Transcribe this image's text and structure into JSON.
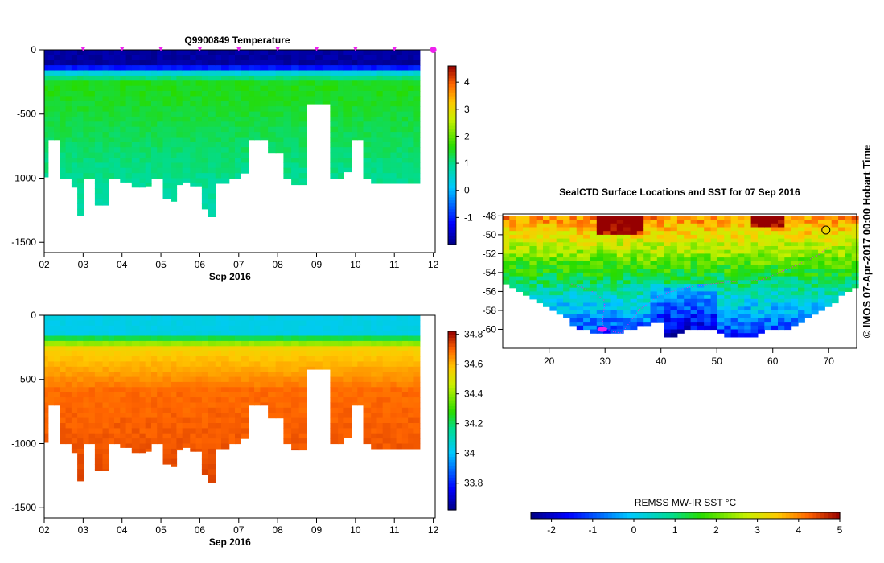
{
  "chart_data": [
    {
      "type": "heatmap",
      "title": "Q9900849  Temperature",
      "xlabel": "Sep 2016",
      "x_tick_labels": [
        "02",
        "03",
        "04",
        "05",
        "06",
        "07",
        "08",
        "09",
        "10",
        "11",
        "12"
      ],
      "x_range_days": [
        2,
        12.05
      ],
      "y_tick_labels": [
        "0",
        "-500",
        "-1000",
        "-1500"
      ],
      "y_ticks": [
        0,
        -500,
        -1000,
        -1500
      ],
      "ylim": [
        -1580,
        0
      ],
      "colorbar": {
        "ticks": [
          -1,
          0,
          1,
          2,
          3,
          4
        ],
        "tick_labels": [
          "-1",
          "0",
          "1",
          "2",
          "3",
          "4"
        ],
        "range": [
          -2,
          4.6
        ]
      },
      "profile_times": [
        2.0,
        2.1,
        2.25,
        2.4,
        2.55,
        2.7,
        2.85,
        3.0,
        3.15,
        3.3,
        3.5,
        3.65,
        3.8,
        3.95,
        4.1,
        4.25,
        4.45,
        4.6,
        4.75,
        4.9,
        5.05,
        5.25,
        5.4,
        5.55,
        5.75,
        5.9,
        6.05,
        6.2,
        6.4,
        6.55,
        6.75,
        6.9,
        7.05,
        7.25,
        7.4,
        7.55,
        7.75,
        7.95,
        8.15,
        8.35,
        8.55,
        8.75,
        8.95,
        9.15,
        9.35,
        9.55,
        9.7,
        9.9,
        10.05,
        10.2,
        10.4,
        10.55,
        10.7,
        10.9,
        11.05,
        11.2,
        11.35,
        11.5,
        11.65
      ],
      "profile_bottom_depths": [
        -990,
        -700,
        -700,
        -1000,
        -1000,
        -1070,
        -1290,
        -1000,
        -1000,
        -1210,
        -1210,
        -1000,
        -1000,
        -1030,
        -1030,
        -1070,
        -1070,
        -1060,
        -1000,
        -1000,
        -1160,
        -1180,
        -1050,
        -1030,
        -1060,
        -1060,
        -1240,
        -1300,
        -1040,
        -1040,
        -1000,
        -1000,
        -960,
        -700,
        -700,
        -700,
        -800,
        -800,
        -1000,
        -1050,
        -1050,
        -420,
        -420,
        -420,
        -1000,
        -1000,
        -950,
        -700,
        -700,
        -1000,
        -1040,
        -1040,
        -1040,
        -1040,
        -1040,
        -1040,
        -1040,
        -1040,
        -1040
      ],
      "profiles_summary": [
        {
          "depth": 0,
          "temperature": -1.7
        },
        {
          "depth": -120,
          "temperature": -1.2
        },
        {
          "depth": -200,
          "temperature": 0.6
        },
        {
          "depth": -300,
          "temperature": 1.5
        },
        {
          "depth": -600,
          "temperature": 1.3
        },
        {
          "depth": -1000,
          "temperature": 0.8
        }
      ],
      "markers": "magenta triangles along top axis"
    },
    {
      "type": "heatmap",
      "title": "",
      "xlabel": "Sep 2016",
      "x_tick_labels": [
        "02",
        "03",
        "04",
        "05",
        "06",
        "07",
        "08",
        "09",
        "10",
        "11",
        "12"
      ],
      "x_range_days": [
        2,
        12.05
      ],
      "y_tick_labels": [
        "0",
        "-500",
        "-1000",
        "-1500"
      ],
      "y_ticks": [
        0,
        -500,
        -1000,
        -1500
      ],
      "ylim": [
        -1580,
        0
      ],
      "colorbar": {
        "ticks": [
          33.8,
          34,
          34.2,
          34.4,
          34.6,
          34.8
        ],
        "tick_labels": [
          "33.8",
          "34",
          "34.2",
          "34.4",
          "34.6",
          "34.8"
        ],
        "range": [
          33.62,
          34.82
        ]
      },
      "profiles_summary": [
        {
          "depth": 0,
          "salinity": 34.05
        },
        {
          "depth": -150,
          "salinity": 34.2
        },
        {
          "depth": -250,
          "salinity": 34.55
        },
        {
          "depth": -500,
          "salinity": 34.68
        },
        {
          "depth": -1000,
          "salinity": 34.72
        }
      ]
    },
    {
      "type": "heatmap",
      "title": "SealCTD Surface Locations and SST for 07 Sep 2016",
      "xlabel": "",
      "x_tick_labels": [
        "20",
        "30",
        "40",
        "50",
        "60",
        "70"
      ],
      "x_ticks": [
        20,
        30,
        40,
        50,
        60,
        70
      ],
      "xlim": [
        11.7,
        75
      ],
      "y_tick_labels": [
        "-48",
        "-50",
        "-52",
        "-54",
        "-56",
        "-58",
        "-60"
      ],
      "y_ticks": [
        -48,
        -50,
        -52,
        -54,
        -56,
        -58,
        -60
      ],
      "ylim": [
        -62,
        -47.8
      ],
      "colorbar": {
        "label": "REMSS MW-IR SST °C",
        "ticks": [
          -2,
          -1,
          0,
          1,
          2,
          3,
          4,
          5
        ],
        "tick_labels": [
          "-2",
          "-1",
          "0",
          "1",
          "2",
          "3",
          "4",
          "5"
        ],
        "range": [
          -2.5,
          5
        ]
      },
      "annotations": [
        "magenta track of seal CTD surface locations"
      ]
    }
  ],
  "side_label": "© IMOS 07-Apr-2017 00:00 Hobart Time"
}
